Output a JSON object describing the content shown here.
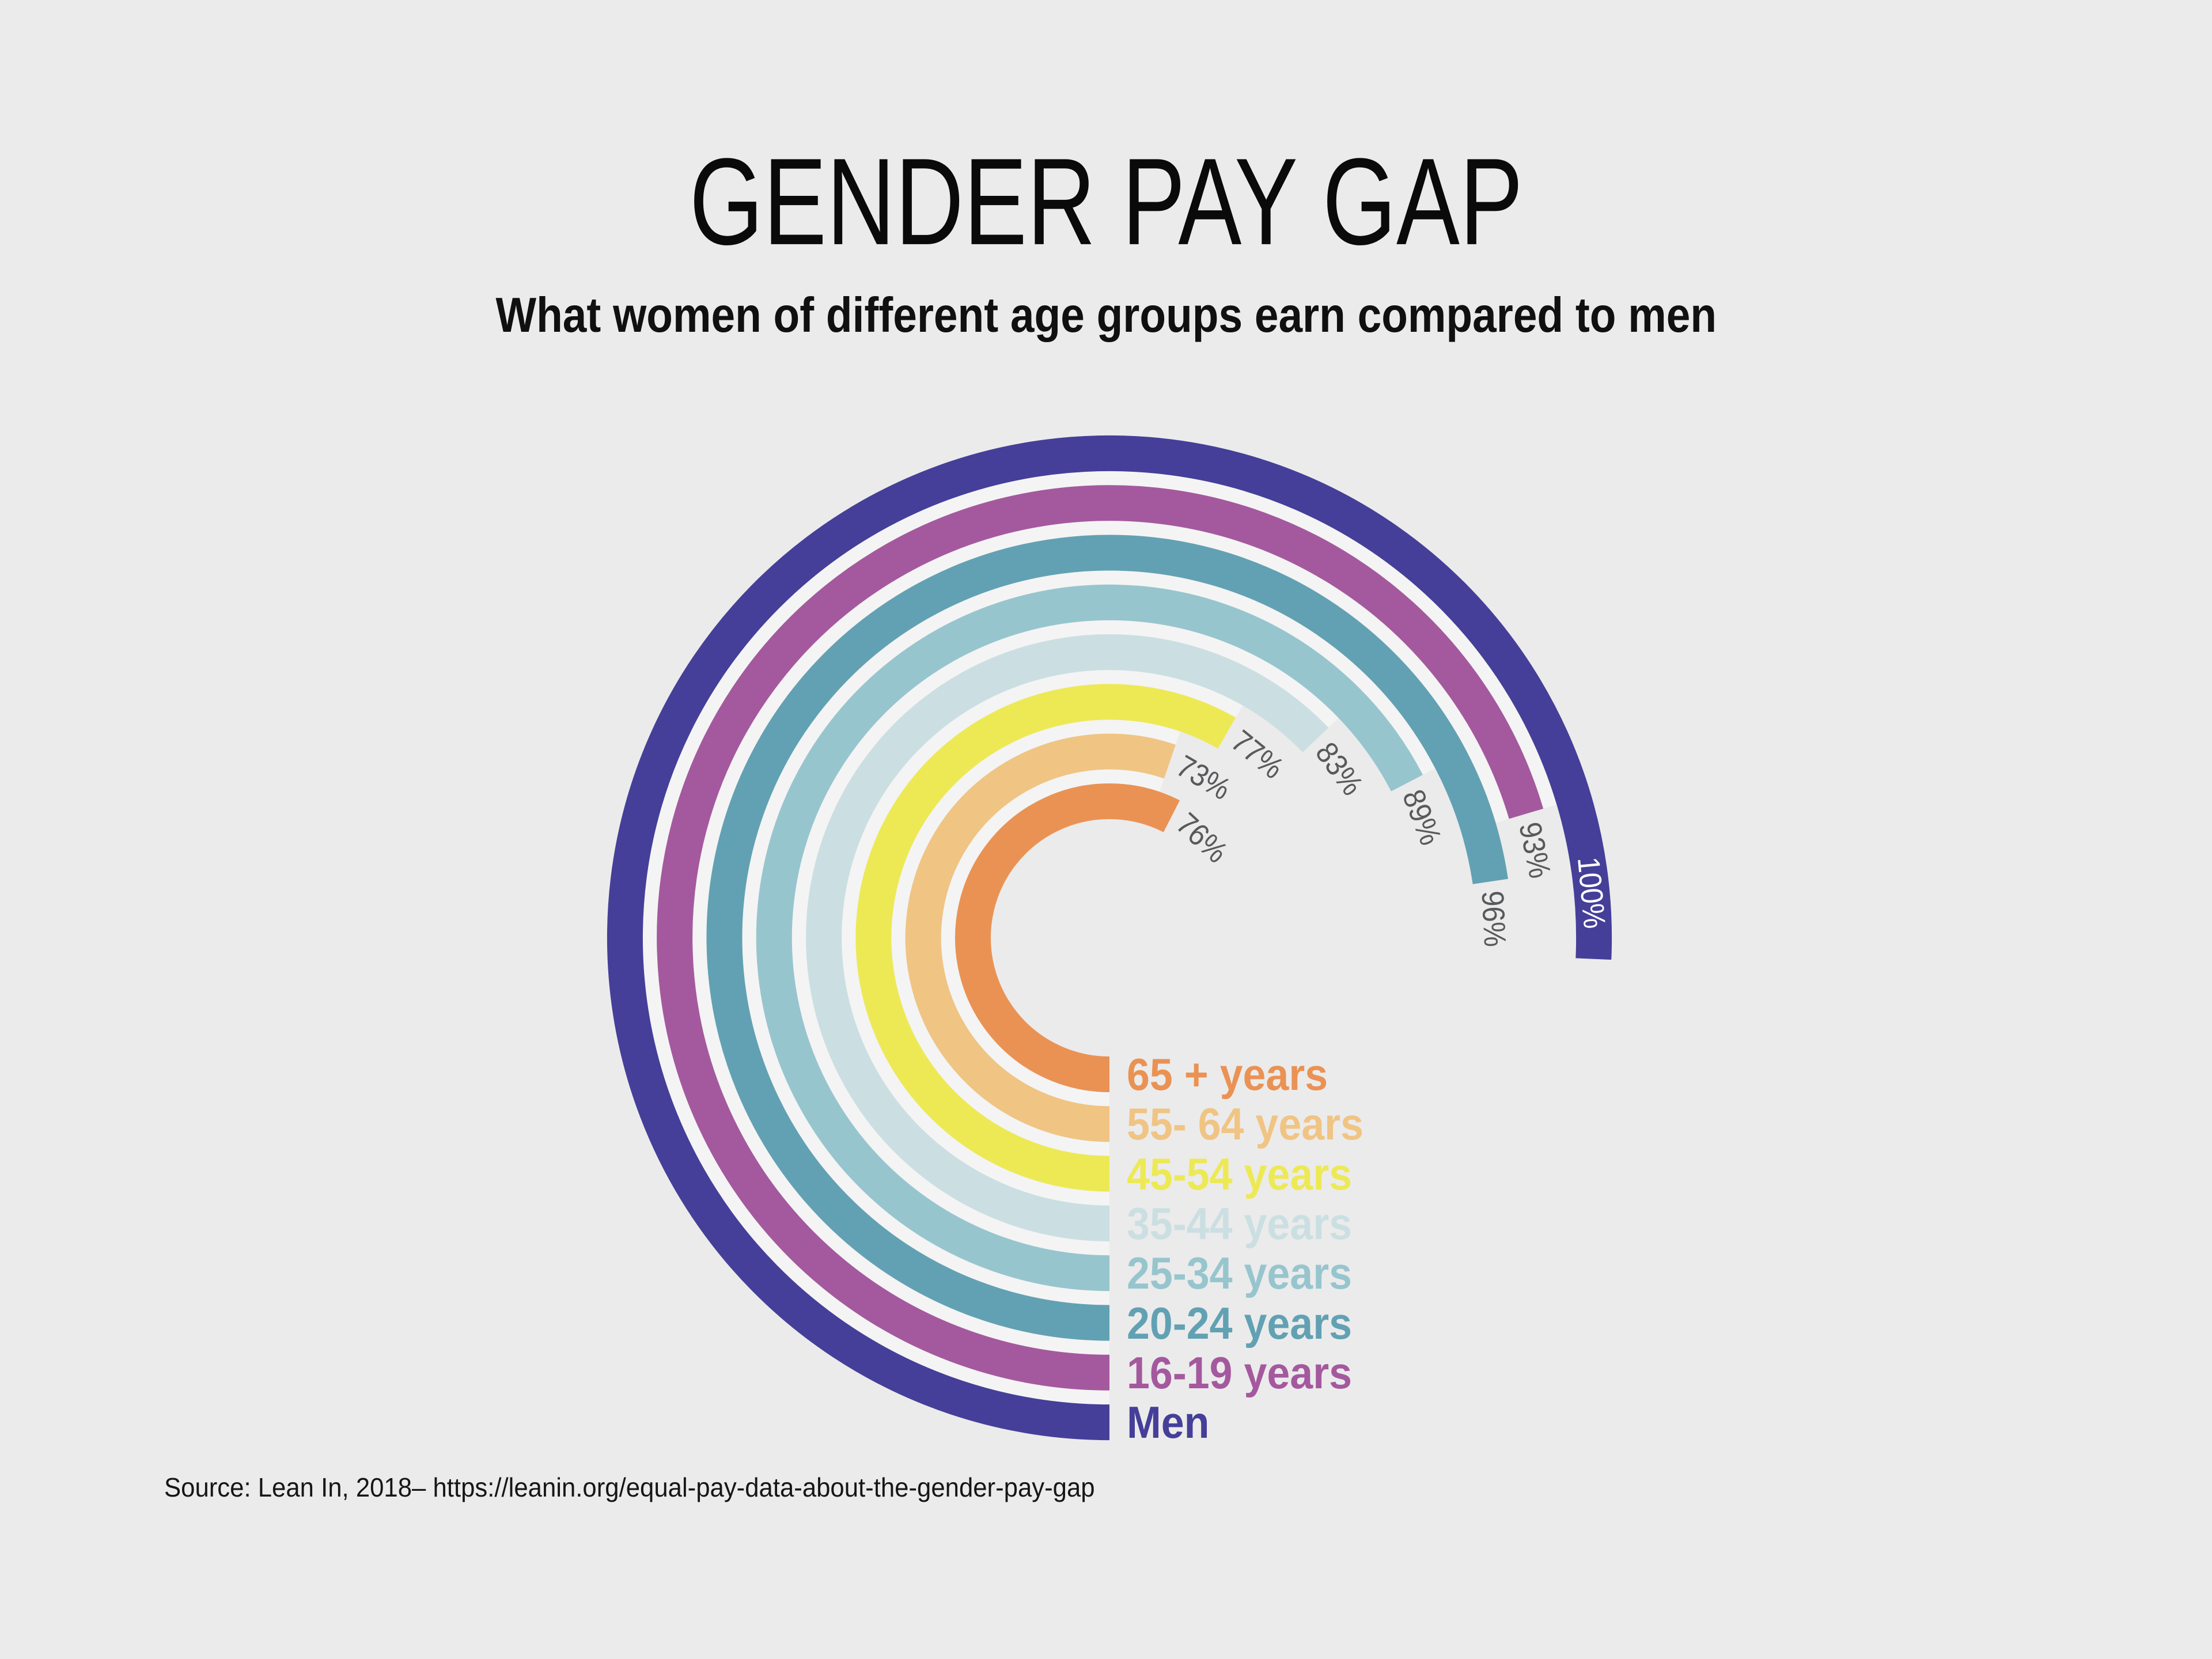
{
  "page": {
    "background_color": "#ebebeb",
    "title": "GENDER PAY GAP",
    "subtitle": "What women of different age groups earn compared to men",
    "source_line": "Source: Lean In, 2018–  https://leanin.org/equal-pay-data-about-the-gender-pay-gap"
  },
  "chart_data": {
    "type": "radial_bar",
    "title": "GENDER PAY GAP",
    "subtitle": "What women of different age groups earn compared to men",
    "unit": "percent of men's earnings",
    "start_position": "6 o'clock",
    "sweep_direction": "clockwise",
    "degrees_per_percent": 2.725,
    "full_scale_value": 100,
    "grid": "off",
    "legend_position": "bottom-center, one label per ring at ring start",
    "gap_color": "#f4f4f4",
    "value_label_color": "#58595b",
    "men_value_label_color": "#ffffff",
    "rings": [
      {
        "category": "65 + years",
        "value": 76,
        "value_label": "76%",
        "color": "#ea9254"
      },
      {
        "category": "55- 64 years",
        "value": 73,
        "value_label": "73%",
        "color": "#f0c483"
      },
      {
        "category": "45-54 years",
        "value": 77,
        "value_label": "77%",
        "color": "#ede955"
      },
      {
        "category": "35-44 years",
        "value": 83,
        "value_label": "83%",
        "color": "#cbdfe2"
      },
      {
        "category": "25-34 years",
        "value": 89,
        "value_label": "89%",
        "color": "#97c5ce"
      },
      {
        "category": "20-24 years",
        "value": 96,
        "value_label": "96%",
        "color": "#62a1b3"
      },
      {
        "category": "16-19 years",
        "value": 93,
        "value_label": "93%",
        "color": "#a4599e"
      },
      {
        "category": "Men",
        "value": 100,
        "value_label": "100%",
        "color": "#453f99"
      }
    ]
  }
}
